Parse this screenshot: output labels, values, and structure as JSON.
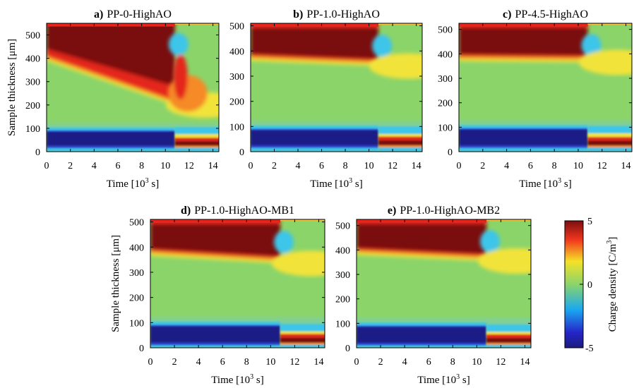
{
  "chart_data": {
    "type": "heatmap",
    "colormap": "jet",
    "colors": {
      "low": "#1a1a7a",
      "mid": "#8bd46a",
      "high": "#7a0f0f"
    },
    "colorbar": {
      "label": "Charge density [C/m",
      "label_exp": "3",
      "label_close": "]",
      "min": -5,
      "max": 5,
      "ticks": [
        "5",
        "0",
        "-5"
      ]
    },
    "panels": [
      {
        "letter": "a)",
        "title": "PP-0-HighAO",
        "xlabel": "Time [10",
        "xlabel_exp": "3",
        "xlabel_tail": " s]",
        "ylabel": "Sample thickness [μm]",
        "xlim": [
          0,
          14.5
        ],
        "ylim": [
          0,
          550
        ],
        "xticks": [
          "0",
          "2",
          "4",
          "6",
          "8",
          "10",
          "12",
          "14"
        ],
        "yticks": [
          "0",
          "100",
          "200",
          "300",
          "400",
          "500"
        ],
        "switch_time": 10.8,
        "features": {
          "top_edge": 550,
          "positive_front_start": 410,
          "positive_front_end": 220,
          "positive_inner_start": 440,
          "positive_inner_end": 280,
          "negative_band": [
            25,
            85
          ],
          "post_switch_bands": [
            [
              25,
              45
            ],
            [
              45,
              60
            ],
            [
              60,
              75
            ]
          ]
        }
      },
      {
        "letter": "b)",
        "title": "PP-1.0-HighAO",
        "xlabel": "Time [10",
        "xlabel_exp": "3",
        "xlabel_tail": " s]",
        "ylabel": "",
        "xlim": [
          0,
          14.5
        ],
        "ylim": [
          0,
          510
        ],
        "xticks": [
          "0",
          "2",
          "4",
          "6",
          "8",
          "10",
          "12",
          "14"
        ],
        "yticks": [
          "0",
          "100",
          "200",
          "300",
          "400",
          "500"
        ],
        "switch_time": 10.8,
        "features": {
          "top_edge": 510,
          "positive_front_start": 380,
          "positive_front_end": 360,
          "negative_band": [
            25,
            85
          ],
          "post_switch_bands": [
            [
              25,
              45
            ],
            [
              45,
              60
            ],
            [
              60,
              70
            ]
          ]
        }
      },
      {
        "letter": "c)",
        "title": "PP-4.5-HighAO",
        "xlabel": "Time [10",
        "xlabel_exp": "3",
        "xlabel_tail": " s]",
        "ylabel": "",
        "xlim": [
          0,
          14.5
        ],
        "ylim": [
          0,
          525
        ],
        "xticks": [
          "0",
          "2",
          "4",
          "6",
          "8",
          "10",
          "12",
          "14"
        ],
        "yticks": [
          "0",
          "100",
          "200",
          "300",
          "400",
          "500"
        ],
        "switch_time": 10.8,
        "features": {
          "top_edge": 525,
          "positive_front_start": 390,
          "positive_front_end": 385,
          "negative_band": [
            25,
            90
          ],
          "post_switch_bands": [
            [
              25,
              45
            ],
            [
              45,
              60
            ],
            [
              60,
              75
            ]
          ]
        }
      },
      {
        "letter": "d)",
        "title": "PP-1.0-HighAO-MB1",
        "xlabel": "Time [10",
        "xlabel_exp": "3",
        "xlabel_tail": " s]",
        "ylabel": "Sample thickness [μm]",
        "xlim": [
          0,
          14.5
        ],
        "ylim": [
          0,
          510
        ],
        "xticks": [
          "0",
          "2",
          "4",
          "6",
          "8",
          "10",
          "12",
          "14"
        ],
        "yticks": [
          "0",
          "100",
          "200",
          "300",
          "400",
          "500"
        ],
        "switch_time": 10.8,
        "features": {
          "top_edge": 510,
          "positive_front_start": 385,
          "positive_front_end": 355,
          "negative_band": [
            20,
            85
          ],
          "post_switch_bands": [
            [
              20,
              40
            ],
            [
              40,
              55
            ],
            [
              55,
              65
            ]
          ]
        }
      },
      {
        "letter": "e)",
        "title": "PP-1.0-HighAO-MB2",
        "xlabel": "Time [10",
        "xlabel_exp": "3",
        "xlabel_tail": " s]",
        "ylabel": "",
        "xlim": [
          0,
          14.5
        ],
        "ylim": [
          0,
          525
        ],
        "xticks": [
          "0",
          "2",
          "4",
          "6",
          "8",
          "10",
          "12",
          "14"
        ],
        "yticks": [
          "0",
          "100",
          "200",
          "300",
          "400",
          "500"
        ],
        "switch_time": 10.8,
        "features": {
          "top_edge": 525,
          "positive_front_start": 400,
          "positive_front_end": 375,
          "negative_band": [
            20,
            85
          ],
          "post_switch_bands": [
            [
              20,
              40
            ],
            [
              40,
              55
            ],
            [
              55,
              65
            ]
          ]
        }
      }
    ]
  }
}
